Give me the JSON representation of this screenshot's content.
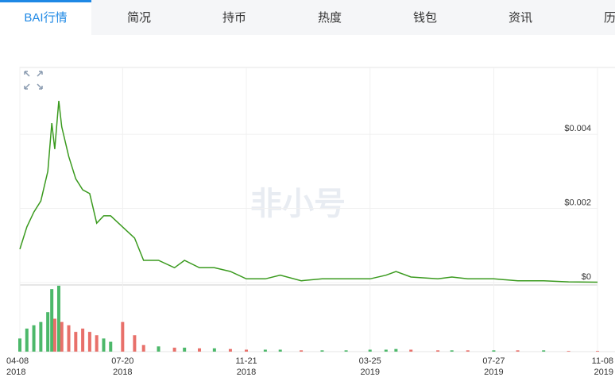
{
  "tabs": [
    "BAI行情",
    "简况",
    "持币",
    "热度",
    "钱包",
    "资讯",
    "历史"
  ],
  "watermark": "非小号",
  "chart_data": {
    "type": "line",
    "x": [
      "2018-04-08",
      "2018-04-15",
      "2018-04-22",
      "2018-04-29",
      "2018-05-06",
      "2018-05-10",
      "2018-05-13",
      "2018-05-17",
      "2018-05-20",
      "2018-05-27",
      "2018-06-03",
      "2018-06-10",
      "2018-06-17",
      "2018-06-24",
      "2018-07-01",
      "2018-07-08",
      "2018-07-20",
      "2018-08-01",
      "2018-08-10",
      "2018-08-25",
      "2018-09-10",
      "2018-09-20",
      "2018-10-05",
      "2018-10-20",
      "2018-11-05",
      "2018-11-21",
      "2018-12-10",
      "2018-12-25",
      "2019-01-15",
      "2019-02-05",
      "2019-03-01",
      "2019-03-25",
      "2019-04-10",
      "2019-04-20",
      "2019-05-05",
      "2019-06-01",
      "2019-06-15",
      "2019-07-01",
      "2019-07-27",
      "2019-08-20",
      "2019-09-15",
      "2019-10-10",
      "2019-11-08"
    ],
    "series": [
      {
        "color": "#3a9a1e",
        "values": [
          0.0009,
          0.0015,
          0.0019,
          0.0022,
          0.003,
          0.0043,
          0.0036,
          0.0049,
          0.0042,
          0.0034,
          0.0028,
          0.0025,
          0.0024,
          0.0016,
          0.0018,
          0.0018,
          0.0015,
          0.0012,
          0.0006,
          0.0006,
          0.0004,
          0.0006,
          0.0004,
          0.0004,
          0.0003,
          0.0001,
          0.0001,
          0.0002,
          5e-05,
          0.0001,
          0.0001,
          0.0001,
          0.0002,
          0.0003,
          0.00015,
          0.0001,
          0.00015,
          0.0001,
          0.0001,
          5e-05,
          5e-05,
          2e-05,
          1e-05
        ]
      },
      {
        "color": "#e8706a",
        "up_color": "#4cb86a",
        "axis": "y2",
        "values": [
          20,
          35,
          40,
          45,
          60,
          95,
          50,
          100,
          45,
          40,
          30,
          35,
          30,
          25,
          20,
          15,
          45,
          25,
          10,
          8,
          6,
          6,
          5,
          5,
          4,
          3,
          3,
          3,
          2,
          2,
          2,
          3,
          3,
          4,
          3,
          2,
          2,
          2,
          2,
          2,
          2,
          1,
          1
        ]
      }
    ],
    "xlim": [
      "2018-04-08",
      "2019-11-08"
    ],
    "xticks": [
      {
        "value": "2018-04-08",
        "label": [
          "04-08",
          "2018"
        ]
      },
      {
        "value": "2018-07-20",
        "label": [
          "07-20",
          "2018"
        ]
      },
      {
        "value": "2018-11-21",
        "label": [
          "11-21",
          "2018"
        ]
      },
      {
        "value": "2019-03-25",
        "label": [
          "03-25",
          "2019"
        ]
      },
      {
        "value": "2019-07-27",
        "label": [
          "07-27",
          "2019"
        ]
      },
      {
        "value": "2019-11-08",
        "label": [
          "11-08",
          "2019"
        ]
      }
    ],
    "ylim": [
      0,
      0.0058
    ],
    "yticks": [
      {
        "value": 0,
        "label": "$0"
      },
      {
        "value": 0.002,
        "label": "$0.002"
      },
      {
        "value": 0.004,
        "label": "$0.004"
      }
    ],
    "y2lim": [
      0,
      100
    ],
    "grid": true
  }
}
